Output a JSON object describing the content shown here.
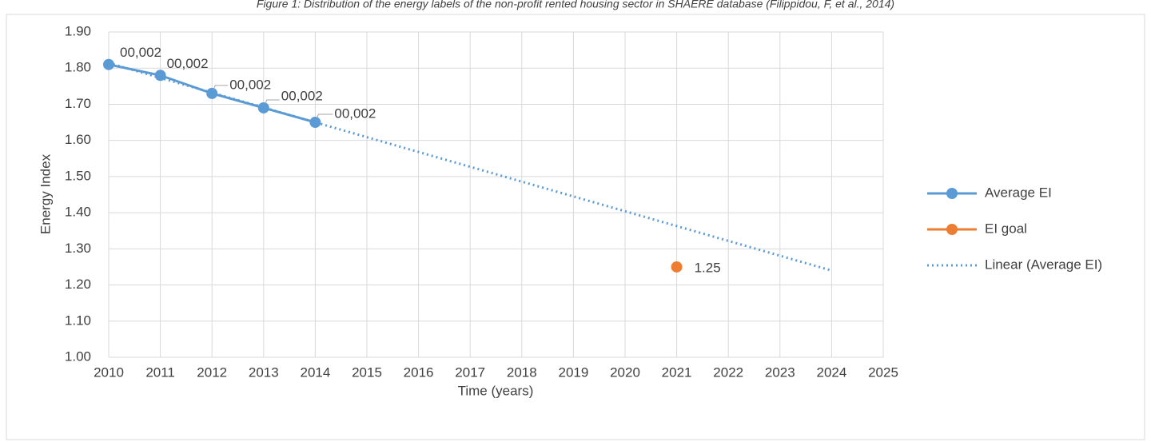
{
  "chart_data": {
    "type": "line",
    "title": "Figure 1: Distribution of the energy labels of the non-profit rented housing sector in SHAERE database (Filippidou, F, et al., 2014)",
    "xlabel": "Time (years)",
    "ylabel": "Energy Index",
    "xlim": [
      2010,
      2025
    ],
    "xticks": [
      2010,
      2011,
      2012,
      2013,
      2014,
      2015,
      2016,
      2017,
      2018,
      2019,
      2020,
      2021,
      2022,
      2023,
      2024,
      2025
    ],
    "ylim": [
      1.0,
      1.9
    ],
    "yticks": [
      {
        "value": 1.0,
        "label": "1.00"
      },
      {
        "value": 1.1,
        "label": "1.10"
      },
      {
        "value": 1.2,
        "label": "1.20"
      },
      {
        "value": 1.3,
        "label": "1.30"
      },
      {
        "value": 1.4,
        "label": "1.40"
      },
      {
        "value": 1.5,
        "label": "1.50"
      },
      {
        "value": 1.6,
        "label": "1.60"
      },
      {
        "value": 1.7,
        "label": "1.70"
      },
      {
        "value": 1.8,
        "label": "1.80"
      },
      {
        "value": 1.9,
        "label": "1.90"
      }
    ],
    "grid": true,
    "legend": "right",
    "series": [
      {
        "name": "Average EI",
        "color": "#5b9bd5",
        "style": "solid",
        "markers": true,
        "x": [
          2010,
          2011,
          2012,
          2013,
          2014
        ],
        "values": [
          1.81,
          1.78,
          1.73,
          1.69,
          1.65
        ]
      },
      {
        "name": "EI goal",
        "color": "#ed7d31",
        "style": "solid",
        "markers": true,
        "show_labels": true,
        "x": [
          2021
        ],
        "values": [
          1.25
        ]
      },
      {
        "name": "Linear (Average EI)",
        "color": "#5b9bd5",
        "style": "dotted",
        "markers": false,
        "x": [
          2010,
          2024
        ],
        "values": [
          1.814,
          1.24
        ]
      }
    ],
    "annotations": [
      {
        "text": "00,002"
      },
      {
        "text": "00,002"
      },
      {
        "text": "00,002"
      },
      {
        "text": "00,002"
      },
      {
        "text": "00,002"
      }
    ]
  }
}
